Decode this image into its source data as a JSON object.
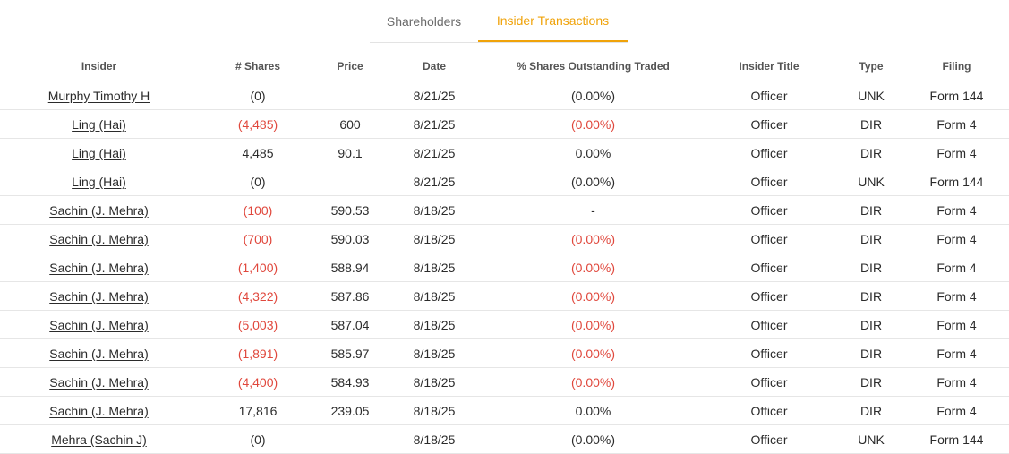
{
  "tabs": [
    {
      "label": "Shareholders",
      "active": false
    },
    {
      "label": "Insider Transactions",
      "active": true
    }
  ],
  "colors": {
    "accent": "#f0a30a",
    "negative": "#e0473c"
  },
  "table": {
    "headers": {
      "insider": "Insider",
      "shares": "# Shares",
      "price": "Price",
      "date": "Date",
      "pct": "% Shares Outstanding Traded",
      "title": "Insider Title",
      "type": "Type",
      "filing": "Filing"
    },
    "rows": [
      {
        "insider": "Murphy Timothy H",
        "shares": "(0)",
        "shares_neg": false,
        "price": "",
        "date": "8/21/25",
        "pct": "(0.00%)",
        "pct_neg": false,
        "title": "Officer",
        "type": "UNK",
        "filing": "Form 144"
      },
      {
        "insider": "Ling (Hai)",
        "shares": "(4,485)",
        "shares_neg": true,
        "price": "600",
        "date": "8/21/25",
        "pct": "(0.00%)",
        "pct_neg": true,
        "title": "Officer",
        "type": "DIR",
        "filing": "Form 4"
      },
      {
        "insider": "Ling (Hai)",
        "shares": "4,485",
        "shares_neg": false,
        "price": "90.1",
        "date": "8/21/25",
        "pct": "0.00%",
        "pct_neg": false,
        "title": "Officer",
        "type": "DIR",
        "filing": "Form 4"
      },
      {
        "insider": "Ling (Hai)",
        "shares": "(0)",
        "shares_neg": false,
        "price": "",
        "date": "8/21/25",
        "pct": "(0.00%)",
        "pct_neg": false,
        "title": "Officer",
        "type": "UNK",
        "filing": "Form 144"
      },
      {
        "insider": "Sachin (J. Mehra)",
        "shares": "(100)",
        "shares_neg": true,
        "price": "590.53",
        "date": "8/18/25",
        "pct": "-",
        "pct_neg": false,
        "title": "Officer",
        "type": "DIR",
        "filing": "Form 4"
      },
      {
        "insider": "Sachin (J. Mehra)",
        "shares": "(700)",
        "shares_neg": true,
        "price": "590.03",
        "date": "8/18/25",
        "pct": "(0.00%)",
        "pct_neg": true,
        "title": "Officer",
        "type": "DIR",
        "filing": "Form 4"
      },
      {
        "insider": "Sachin (J. Mehra)",
        "shares": "(1,400)",
        "shares_neg": true,
        "price": "588.94",
        "date": "8/18/25",
        "pct": "(0.00%)",
        "pct_neg": true,
        "title": "Officer",
        "type": "DIR",
        "filing": "Form 4"
      },
      {
        "insider": "Sachin (J. Mehra)",
        "shares": "(4,322)",
        "shares_neg": true,
        "price": "587.86",
        "date": "8/18/25",
        "pct": "(0.00%)",
        "pct_neg": true,
        "title": "Officer",
        "type": "DIR",
        "filing": "Form 4"
      },
      {
        "insider": "Sachin (J. Mehra)",
        "shares": "(5,003)",
        "shares_neg": true,
        "price": "587.04",
        "date": "8/18/25",
        "pct": "(0.00%)",
        "pct_neg": true,
        "title": "Officer",
        "type": "DIR",
        "filing": "Form 4"
      },
      {
        "insider": "Sachin (J. Mehra)",
        "shares": "(1,891)",
        "shares_neg": true,
        "price": "585.97",
        "date": "8/18/25",
        "pct": "(0.00%)",
        "pct_neg": true,
        "title": "Officer",
        "type": "DIR",
        "filing": "Form 4"
      },
      {
        "insider": "Sachin (J. Mehra)",
        "shares": "(4,400)",
        "shares_neg": true,
        "price": "584.93",
        "date": "8/18/25",
        "pct": "(0.00%)",
        "pct_neg": true,
        "title": "Officer",
        "type": "DIR",
        "filing": "Form 4"
      },
      {
        "insider": "Sachin (J. Mehra)",
        "shares": "17,816",
        "shares_neg": false,
        "price": "239.05",
        "date": "8/18/25",
        "pct": "0.00%",
        "pct_neg": false,
        "title": "Officer",
        "type": "DIR",
        "filing": "Form 4"
      },
      {
        "insider": "Mehra (Sachin J)",
        "shares": "(0)",
        "shares_neg": false,
        "price": "",
        "date": "8/18/25",
        "pct": "(0.00%)",
        "pct_neg": false,
        "title": "Officer",
        "type": "UNK",
        "filing": "Form 144"
      }
    ]
  }
}
